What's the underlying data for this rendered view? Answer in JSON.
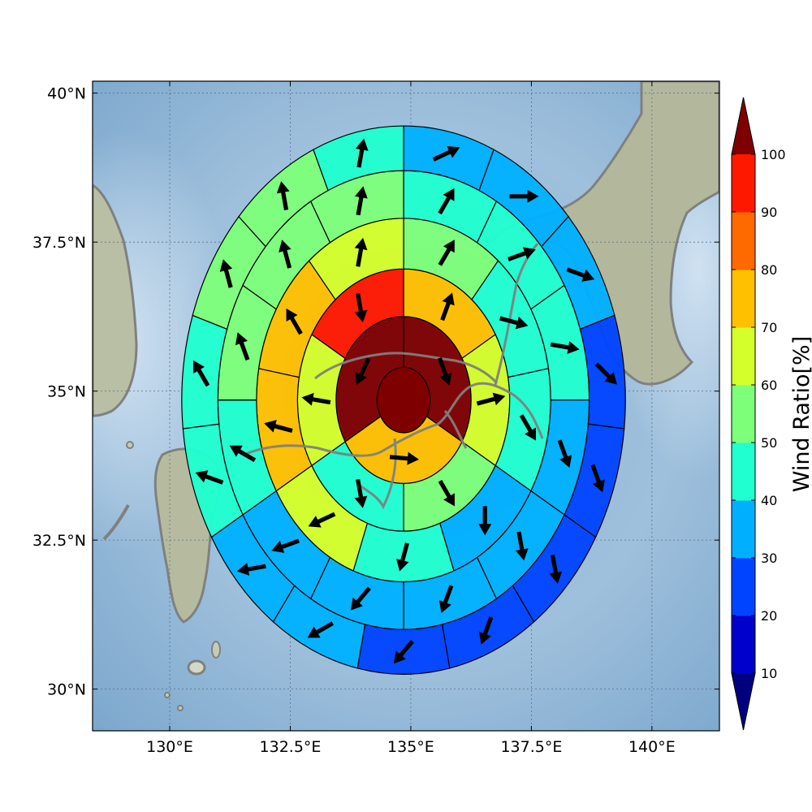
{
  "chart_data": {
    "type": "heatmap",
    "subtype": "polar-sector-map-with-wind-arrows",
    "map": {
      "lon_range": [
        128.4,
        141.4
      ],
      "lat_range": [
        29.3,
        40.2
      ],
      "center": {
        "lon": 134.85,
        "lat": 34.85
      },
      "grid": true,
      "basemap": "shaded relief (Japan, Korea)",
      "coastline_color": "#808080",
      "x_ticks": [
        130,
        132.5,
        135,
        137.5,
        140
      ],
      "x_tick_labels": [
        "130°E",
        "132.5°E",
        "135°E",
        "137.5°E",
        "140°E"
      ],
      "y_ticks": [
        30,
        32.5,
        35,
        37.5,
        40
      ],
      "y_tick_labels": [
        "30°N",
        "32.5°N",
        "35°N",
        "37.5°N",
        "40°N"
      ]
    },
    "rings": [
      {
        "outer_radius_deg": 0.55,
        "sectors": 1,
        "values": [
          100
        ],
        "wind_dir": [
          null
        ]
      },
      {
        "outer_radius_deg": 1.4,
        "sectors": 3,
        "values": [
          100,
          70,
          100
        ],
        "wind_dir": [
          160,
          95,
          205
        ]
      },
      {
        "outer_radius_deg": 2.2,
        "sectors": 6,
        "values": [
          70,
          60,
          50,
          40,
          60,
          90
        ],
        "wind_dir": [
          20,
          75,
          150,
          170,
          280,
          170
        ]
      },
      {
        "outer_radius_deg": 3.05,
        "sectors": 9,
        "values": [
          50,
          40,
          40,
          30,
          40,
          60,
          70,
          70,
          60
        ],
        "wind_dir": [
          30,
          105,
          150,
          180,
          195,
          245,
          285,
          330,
          10
        ]
      },
      {
        "outer_radius_deg": 3.85,
        "sectors": 12,
        "values": [
          40,
          40,
          40,
          30,
          30,
          30,
          30,
          30,
          40,
          50,
          50,
          50
        ],
        "wind_dir": [
          30,
          70,
          100,
          160,
          170,
          200,
          220,
          250,
          300,
          340,
          345,
          10
        ]
      },
      {
        "outer_radius_deg": 4.6,
        "sectors": 15,
        "values": [
          30,
          30,
          30,
          20,
          20,
          20,
          20,
          20,
          30,
          30,
          40,
          40,
          50,
          50,
          40
        ],
        "wind_dir": [
          65,
          90,
          110,
          135,
          160,
          170,
          200,
          220,
          240,
          260,
          290,
          330,
          345,
          350,
          10
        ]
      }
    ],
    "colorbar": {
      "label": "Wind Ratio[%]",
      "ticks": [
        10,
        20,
        30,
        40,
        50,
        60,
        70,
        80,
        90,
        100
      ],
      "bins": [
        {
          "from": 10,
          "to": 20,
          "color": "#0000cd"
        },
        {
          "from": 20,
          "to": 30,
          "color": "#0044ff"
        },
        {
          "from": 30,
          "to": 40,
          "color": "#00b0ff"
        },
        {
          "from": 40,
          "to": 50,
          "color": "#20ffd0"
        },
        {
          "from": 50,
          "to": 60,
          "color": "#7dff7a"
        },
        {
          "from": 60,
          "to": 70,
          "color": "#d4ff2a"
        },
        {
          "from": 70,
          "to": 80,
          "color": "#ffc000"
        },
        {
          "from": 80,
          "to": 90,
          "color": "#ff6a00"
        },
        {
          "from": 90,
          "to": 100,
          "color": "#ff1800"
        }
      ],
      "under_color": "#00007f",
      "over_color": "#7f0000",
      "extend": "both"
    }
  }
}
